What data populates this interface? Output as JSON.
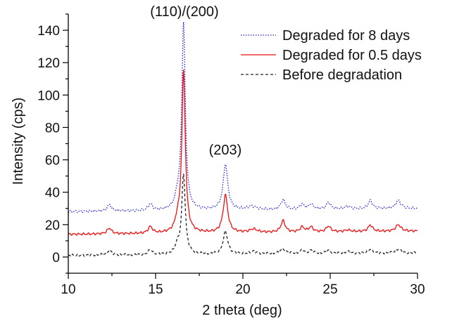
{
  "chart_data": {
    "type": "line",
    "title": "",
    "xlabel": "2 theta (deg)",
    "ylabel": "Intensity (cps)",
    "xlim": [
      10,
      30
    ],
    "ylim": [
      -10,
      150
    ],
    "x_ticks": [
      10,
      15,
      20,
      25,
      30
    ],
    "y_ticks": [
      0,
      20,
      40,
      60,
      80,
      100,
      120,
      140
    ],
    "grid": false,
    "legend_position": "top-right",
    "annotations": [
      {
        "text": "(110)/(200)",
        "x": 16.6,
        "y": 150
      },
      {
        "text": "(203)",
        "x": 19.0,
        "y": 66
      }
    ],
    "series": [
      {
        "name": "Degraded for 8 days",
        "color": "#2222dd",
        "dash": "dotted",
        "baseline": 28,
        "end_baseline": 30,
        "peaks": [
          {
            "x": 12.35,
            "h": 4,
            "w": 0.15
          },
          {
            "x": 14.7,
            "h": 4,
            "w": 0.15
          },
          {
            "x": 16.25,
            "h": 6,
            "w": 0.15
          },
          {
            "x": 16.6,
            "h": 115,
            "w": 0.12
          },
          {
            "x": 19.0,
            "h": 28,
            "w": 0.16
          },
          {
            "x": 20.5,
            "h": 2,
            "w": 0.3
          },
          {
            "x": 22.3,
            "h": 6,
            "w": 0.15
          },
          {
            "x": 23.4,
            "h": 3,
            "w": 0.15
          },
          {
            "x": 23.9,
            "h": 3,
            "w": 0.15
          },
          {
            "x": 24.9,
            "h": 4,
            "w": 0.15
          },
          {
            "x": 26.0,
            "h": 1.5,
            "w": 0.2
          },
          {
            "x": 27.3,
            "h": 5,
            "w": 0.15
          },
          {
            "x": 28.9,
            "h": 5,
            "w": 0.18
          }
        ]
      },
      {
        "name": "Degraded for 0.5 days",
        "color": "#ee1111",
        "dash": "solid",
        "baseline": 14,
        "end_baseline": 16,
        "peaks": [
          {
            "x": 12.35,
            "h": 3.5,
            "w": 0.15
          },
          {
            "x": 14.7,
            "h": 4,
            "w": 0.15
          },
          {
            "x": 16.25,
            "h": 6,
            "w": 0.15
          },
          {
            "x": 16.6,
            "h": 99,
            "w": 0.12
          },
          {
            "x": 19.0,
            "h": 23,
            "w": 0.16
          },
          {
            "x": 20.6,
            "h": 2,
            "w": 0.25
          },
          {
            "x": 22.3,
            "h": 7,
            "w": 0.15
          },
          {
            "x": 23.4,
            "h": 3,
            "w": 0.15
          },
          {
            "x": 23.9,
            "h": 3,
            "w": 0.15
          },
          {
            "x": 24.9,
            "h": 3.5,
            "w": 0.15
          },
          {
            "x": 26.0,
            "h": 1,
            "w": 0.2
          },
          {
            "x": 27.3,
            "h": 4,
            "w": 0.15
          },
          {
            "x": 28.9,
            "h": 4,
            "w": 0.18
          }
        ]
      },
      {
        "name": "Before degradation",
        "color": "#222222",
        "dash": "dashed",
        "baseline": 1,
        "end_baseline": 2.5,
        "peaks": [
          {
            "x": 12.35,
            "h": 3,
            "w": 0.15
          },
          {
            "x": 14.7,
            "h": 3,
            "w": 0.15
          },
          {
            "x": 16.25,
            "h": 5,
            "w": 0.15
          },
          {
            "x": 16.6,
            "h": 49,
            "w": 0.12
          },
          {
            "x": 19.0,
            "h": 14,
            "w": 0.16
          },
          {
            "x": 20.6,
            "h": 1.5,
            "w": 0.25
          },
          {
            "x": 22.3,
            "h": 3,
            "w": 0.2
          },
          {
            "x": 23.4,
            "h": 2,
            "w": 0.15
          },
          {
            "x": 23.9,
            "h": 2,
            "w": 0.15
          },
          {
            "x": 24.9,
            "h": 2,
            "w": 0.15
          },
          {
            "x": 26.0,
            "h": 1,
            "w": 0.2
          },
          {
            "x": 27.3,
            "h": 2.5,
            "w": 0.15
          },
          {
            "x": 28.9,
            "h": 2.5,
            "w": 0.18
          }
        ]
      }
    ]
  }
}
